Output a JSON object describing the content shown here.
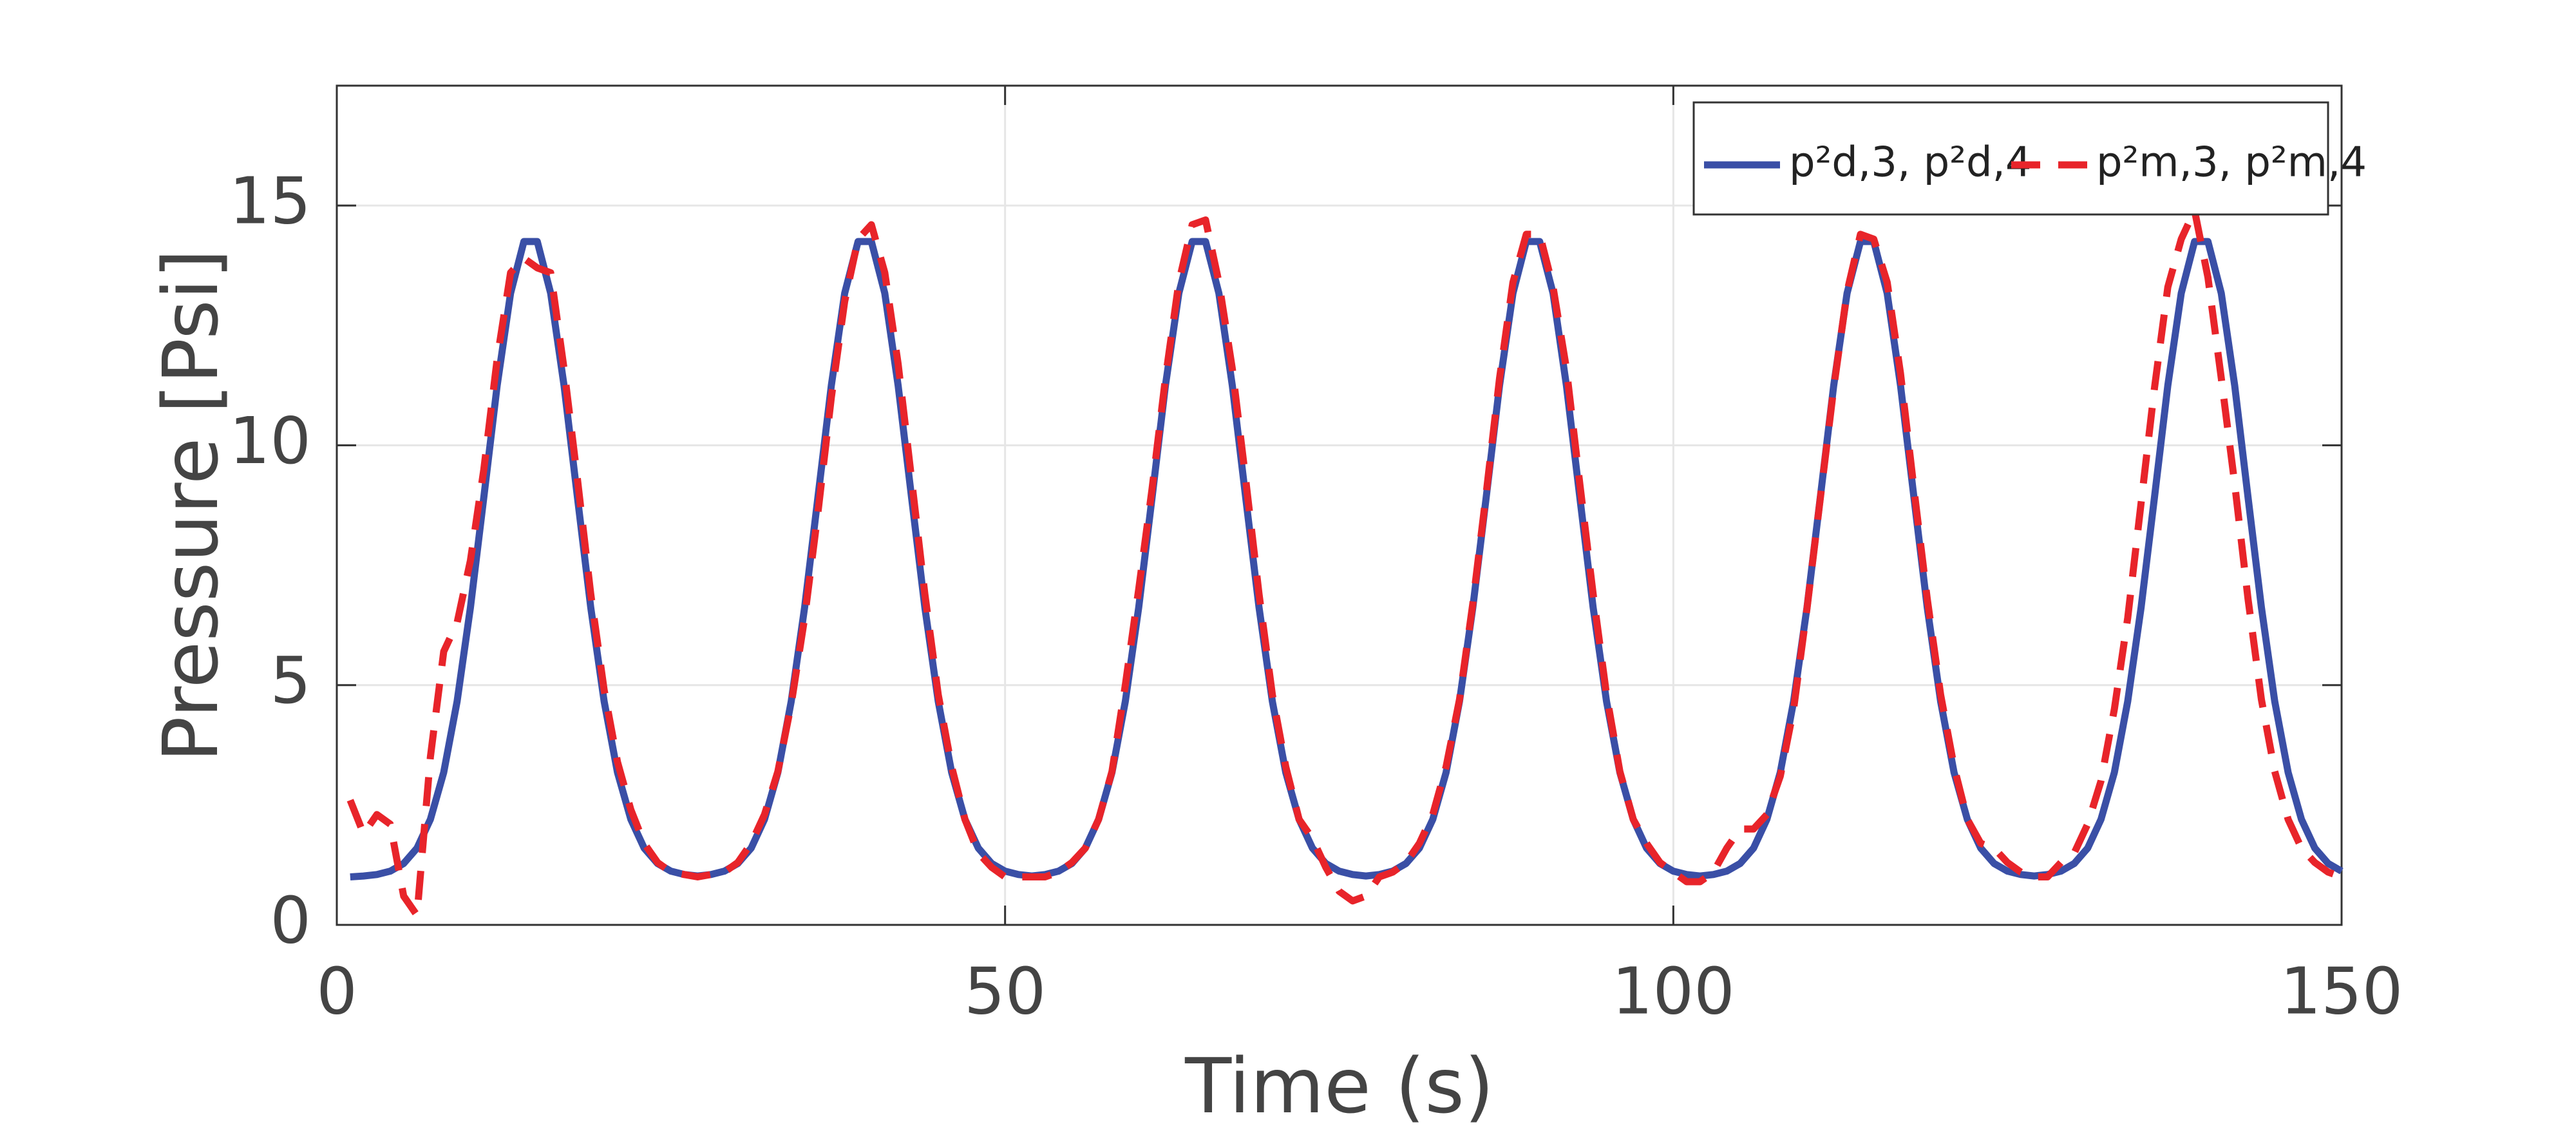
{
  "chart_data": {
    "type": "line",
    "x_label": "Time (s)",
    "y_label": "Pressure [Psi]",
    "xlim": [
      0,
      150
    ],
    "xticks": [
      0,
      50,
      100,
      150
    ],
    "ylim": [
      0,
      17.5
    ],
    "yticks": [
      0,
      5,
      10,
      15
    ],
    "grid": true,
    "legend": "upper right",
    "x": [
      1,
      2,
      3,
      4,
      5,
      6,
      7,
      8,
      9,
      10,
      11,
      12,
      13,
      14,
      15,
      16,
      17,
      18,
      19,
      20,
      21,
      22,
      23,
      24,
      25,
      26,
      27,
      28,
      29,
      30,
      31,
      32,
      33,
      34,
      35,
      36,
      37,
      38,
      39,
      40,
      41,
      42,
      43,
      44,
      45,
      46,
      47,
      48,
      49,
      50,
      51,
      52,
      53,
      54,
      55,
      56,
      57,
      58,
      59,
      60,
      61,
      62,
      63,
      64,
      65,
      66,
      67,
      68,
      69,
      70,
      71,
      72,
      73,
      74,
      75,
      76,
      77,
      78,
      79,
      80,
      81,
      82,
      83,
      84,
      85,
      86,
      87,
      88,
      89,
      90,
      91,
      92,
      93,
      94,
      95,
      96,
      97,
      98,
      99,
      100,
      101,
      102,
      103,
      104,
      105,
      106,
      107,
      108,
      109,
      110,
      111,
      112,
      113,
      114,
      115,
      116,
      117,
      118,
      119,
      120,
      121,
      122,
      123,
      124,
      125,
      126,
      127,
      128,
      129,
      130,
      131,
      132,
      133,
      134,
      135,
      136,
      137,
      138,
      139,
      140,
      141,
      142,
      143,
      144,
      145,
      146,
      147,
      148,
      149,
      150
    ],
    "series": [
      {
        "name": "p²d,3, p²d,4",
        "color": "#3a4fa6",
        "dashed": false,
        "values": [
          1.0,
          1.02,
          1.05,
          1.12,
          1.28,
          1.6,
          2.2,
          3.18,
          4.66,
          6.62,
          8.92,
          11.25,
          13.17,
          14.25,
          14.25,
          13.17,
          11.25,
          8.92,
          6.62,
          4.66,
          3.18,
          2.2,
          1.6,
          1.28,
          1.12,
          1.05,
          1.02,
          1.05,
          1.12,
          1.28,
          1.6,
          2.2,
          3.18,
          4.66,
          6.62,
          8.92,
          11.25,
          13.17,
          14.25,
          14.25,
          13.17,
          11.25,
          8.92,
          6.62,
          4.66,
          3.18,
          2.2,
          1.6,
          1.28,
          1.12,
          1.05,
          1.02,
          1.05,
          1.12,
          1.28,
          1.6,
          2.2,
          3.18,
          4.66,
          6.62,
          8.92,
          11.25,
          13.17,
          14.25,
          14.25,
          13.17,
          11.25,
          8.92,
          6.62,
          4.66,
          3.18,
          2.2,
          1.6,
          1.28,
          1.12,
          1.05,
          1.02,
          1.05,
          1.12,
          1.28,
          1.6,
          2.2,
          3.18,
          4.66,
          6.62,
          8.92,
          11.25,
          13.17,
          14.25,
          14.25,
          13.17,
          11.25,
          8.92,
          6.62,
          4.66,
          3.18,
          2.2,
          1.6,
          1.28,
          1.12,
          1.05,
          1.02,
          1.05,
          1.12,
          1.28,
          1.6,
          2.2,
          3.18,
          4.66,
          6.62,
          8.92,
          11.25,
          13.17,
          14.25,
          14.25,
          13.17,
          11.25,
          8.92,
          6.62,
          4.66,
          3.18,
          2.2,
          1.6,
          1.28,
          1.12,
          1.05,
          1.02,
          1.05,
          1.12,
          1.28,
          1.6,
          2.2,
          3.18,
          4.66,
          6.62,
          8.92,
          11.25,
          13.17,
          14.25,
          14.25,
          13.17,
          11.25,
          8.92,
          6.62,
          4.66,
          3.18,
          2.2,
          1.6,
          1.28,
          1.12
        ]
      },
      {
        "name": "p²m,3, p²m,4",
        "color": "#e8242a",
        "dashed": true,
        "values": [
          2.6,
          1.9,
          2.3,
          2.1,
          0.6,
          0.2,
          3.5,
          5.7,
          6.3,
          7.6,
          9.5,
          11.8,
          13.6,
          13.9,
          13.7,
          13.6,
          11.6,
          9.3,
          6.9,
          4.9,
          3.4,
          2.4,
          1.7,
          1.3,
          1.1,
          1.05,
          1.0,
          1.05,
          1.1,
          1.3,
          1.7,
          2.3,
          3.2,
          4.6,
          6.4,
          8.6,
          11.0,
          13.0,
          14.3,
          14.6,
          13.6,
          11.7,
          9.3,
          6.9,
          4.8,
          3.3,
          2.2,
          1.5,
          1.2,
          1.0,
          1.0,
          1.0,
          1.0,
          1.1,
          1.3,
          1.6,
          2.2,
          3.2,
          5.0,
          7.0,
          9.1,
          11.4,
          13.4,
          14.6,
          14.7,
          13.4,
          11.6,
          9.3,
          6.9,
          4.8,
          3.3,
          2.2,
          1.8,
          1.2,
          0.7,
          0.5,
          0.6,
          1.0,
          1.1,
          1.3,
          1.7,
          2.3,
          3.3,
          4.7,
          6.7,
          9.0,
          11.4,
          13.4,
          14.4,
          14.4,
          13.3,
          11.6,
          9.2,
          6.9,
          4.8,
          3.2,
          2.2,
          1.7,
          1.3,
          1.1,
          0.9,
          0.9,
          1.1,
          1.6,
          2.0,
          2.0,
          2.3,
          3.1,
          4.5,
          6.6,
          8.9,
          11.2,
          13.2,
          14.4,
          14.3,
          13.4,
          11.5,
          9.1,
          6.8,
          4.8,
          3.3,
          2.2,
          1.7,
          1.6,
          1.3,
          1.1,
          1.0,
          1.0,
          1.3,
          1.5,
          2.1,
          3.0,
          4.5,
          6.4,
          8.8,
          11.2,
          13.3,
          14.3,
          14.9,
          13.5,
          11.4,
          9.2,
          6.8,
          4.7,
          3.2,
          2.2,
          1.6,
          1.3,
          1.1,
          1.0
        ]
      }
    ]
  }
}
